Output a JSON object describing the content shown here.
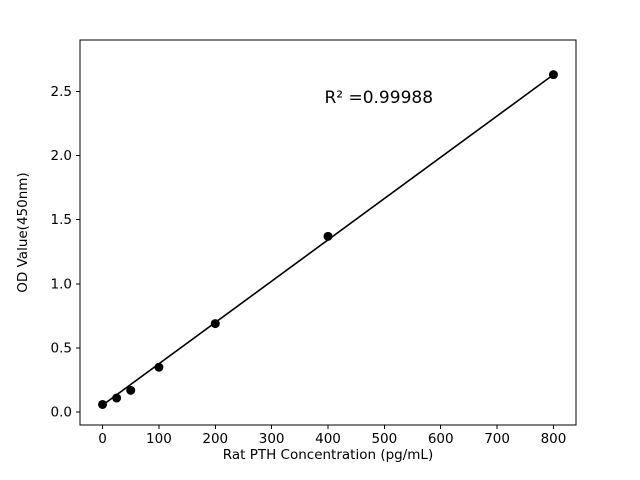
{
  "figure": {
    "background": "#ffffff"
  },
  "chart_data": {
    "type": "scatter",
    "x": [
      0,
      25,
      50,
      100,
      200,
      400,
      800
    ],
    "y": [
      0.06,
      0.11,
      0.17,
      0.35,
      0.69,
      1.37,
      2.63
    ],
    "fit_line": {
      "x": [
        0,
        800
      ],
      "y": [
        0.055,
        2.63
      ]
    },
    "title": "",
    "xlabel": "Rat PTH Concentration (pg/mL)",
    "ylabel": "OD Value(450nm)",
    "annotation": {
      "text": "R² =0.99988",
      "x": 490,
      "y": 2.41
    },
    "xlim": [
      -40,
      840
    ],
    "ylim": [
      -0.1,
      2.9
    ],
    "xticks": [
      0,
      100,
      200,
      300,
      400,
      500,
      600,
      700,
      800
    ],
    "xtick_labels": [
      "0",
      "100",
      "200",
      "300",
      "400",
      "500",
      "600",
      "700",
      "800"
    ],
    "yticks": [
      0.0,
      0.5,
      1.0,
      1.5,
      2.0,
      2.5
    ],
    "ytick_labels": [
      "0.0",
      "0.5",
      "1.0",
      "1.5",
      "2.0",
      "2.5"
    ],
    "grid": false,
    "legend": null,
    "marker_color": "#000000",
    "line_color": "#000000",
    "axis_color": "#000000"
  }
}
